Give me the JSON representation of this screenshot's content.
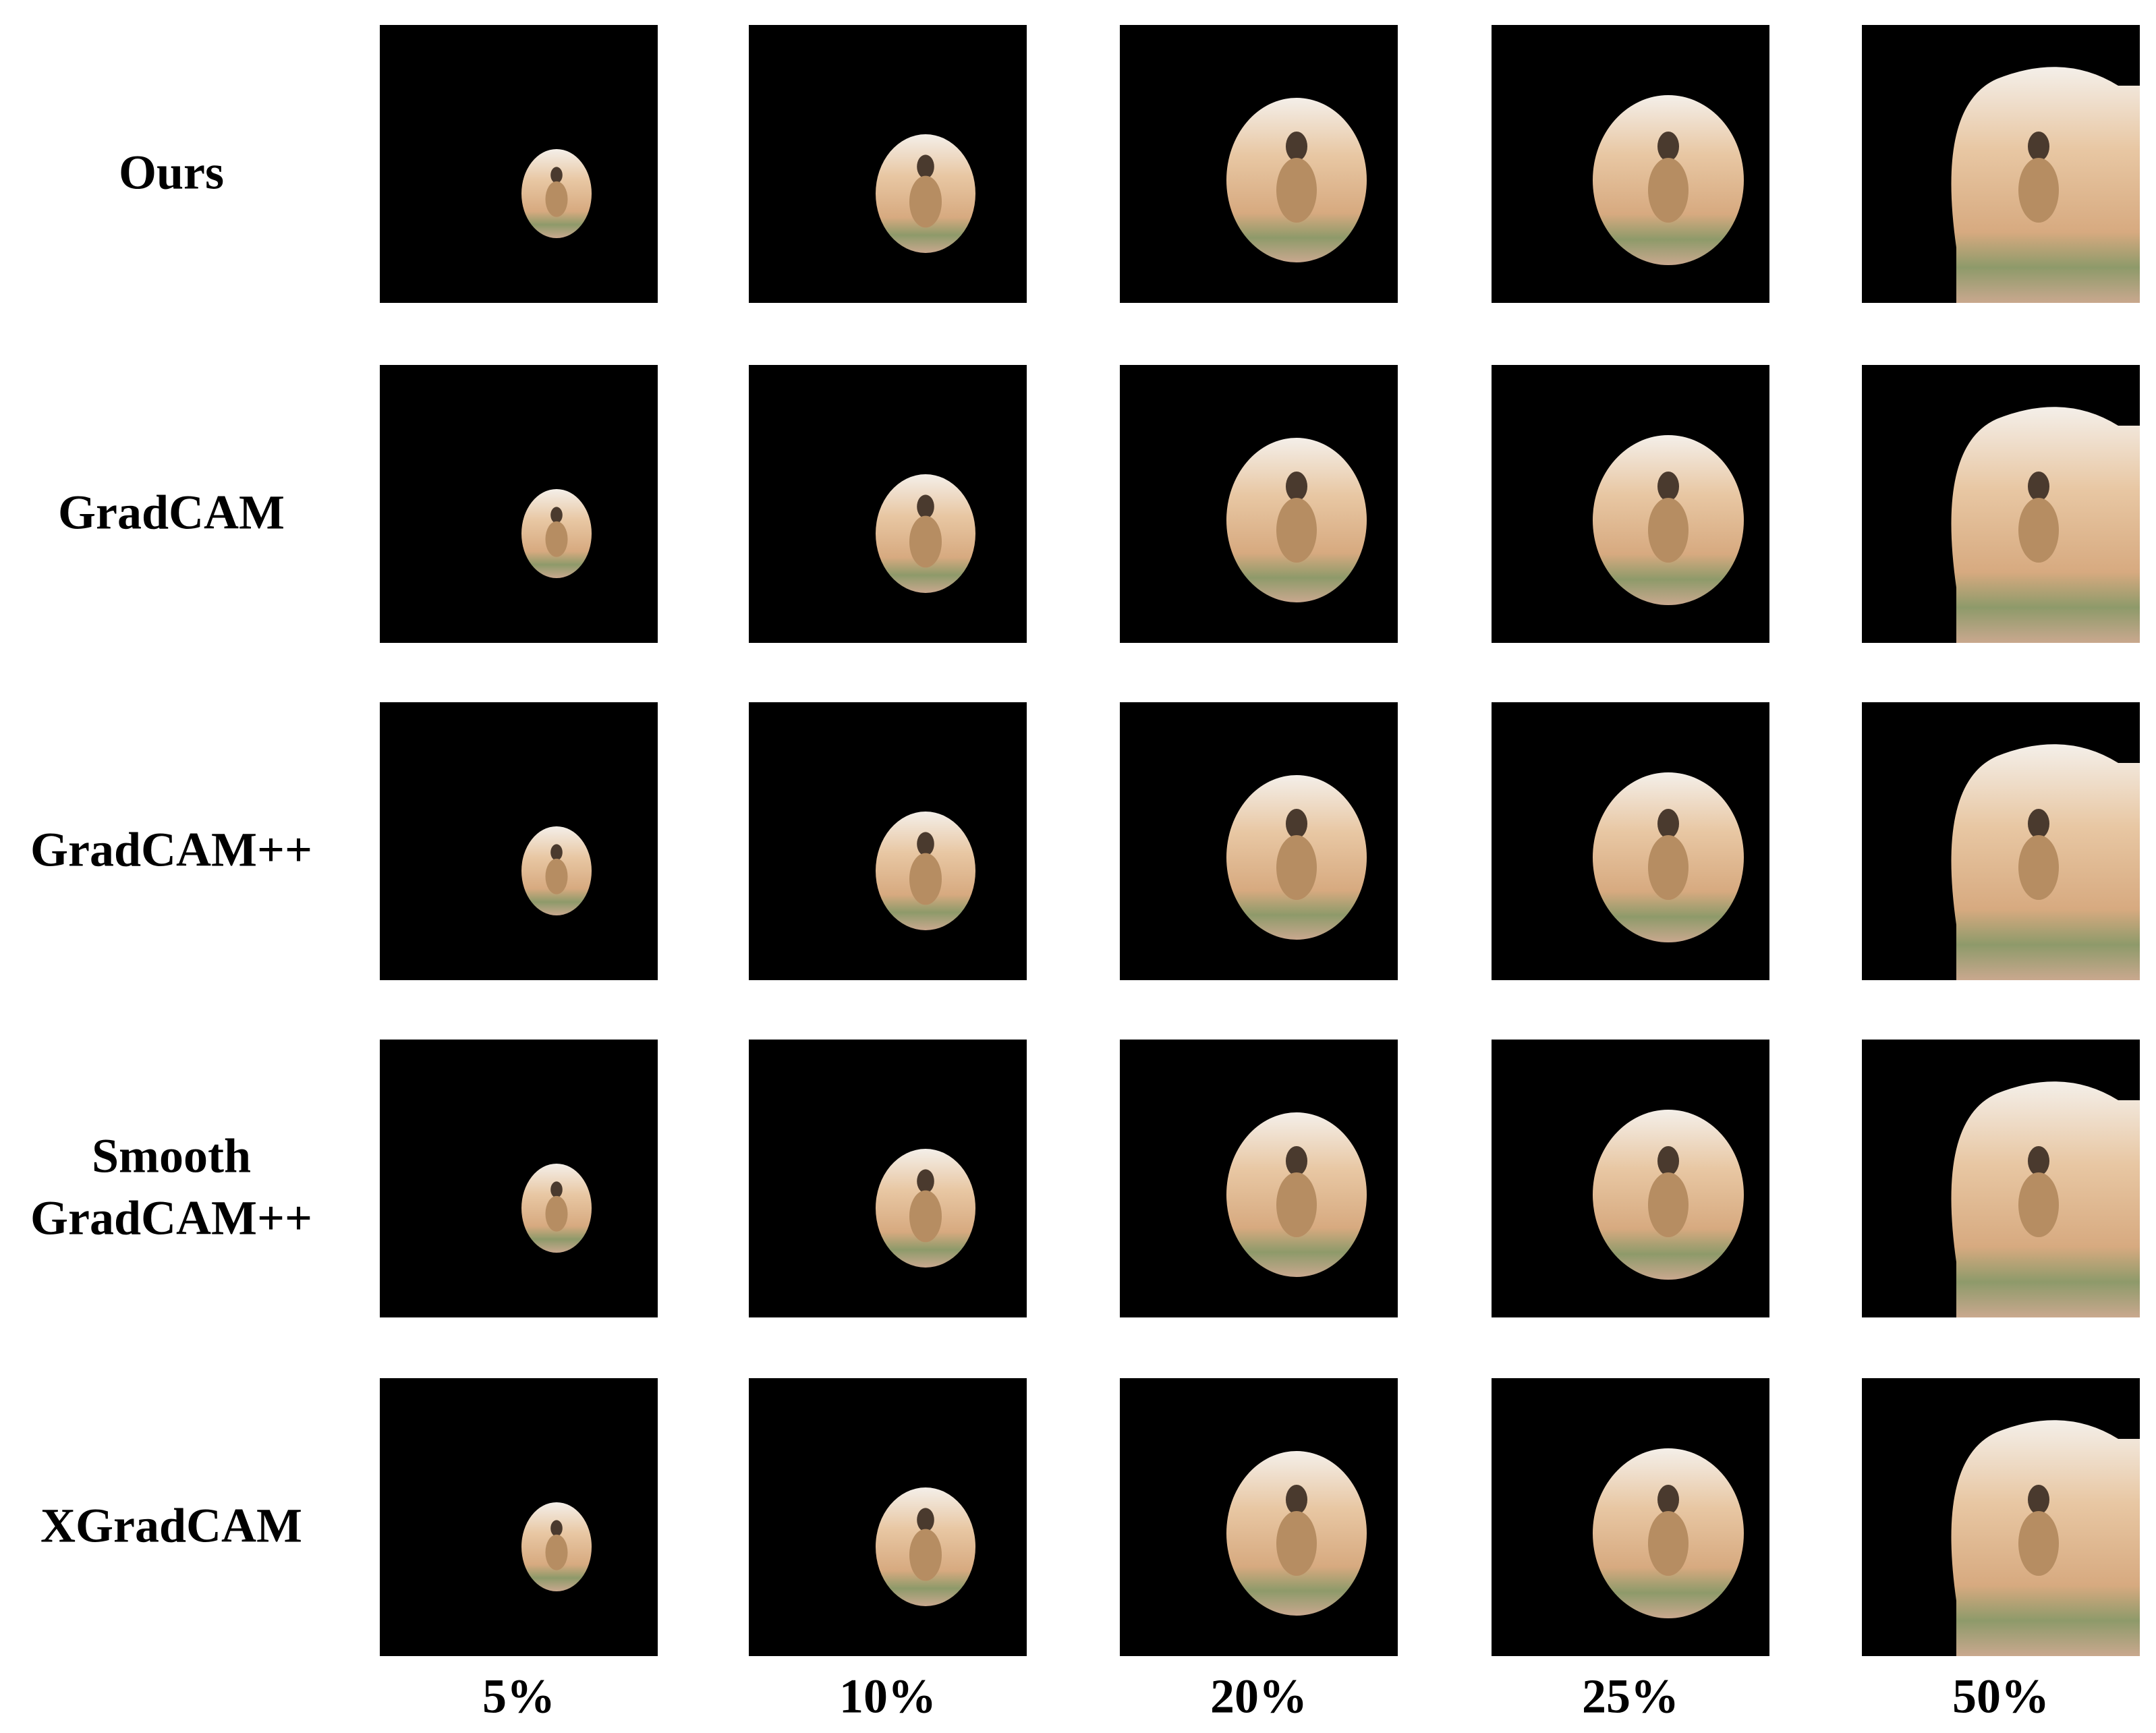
{
  "rows": [
    [
      "Ours"
    ],
    [
      "GradCAM"
    ],
    [
      "GradCAM++"
    ],
    [
      "Smooth",
      "GradCAM++"
    ],
    [
      "XGradCAM"
    ]
  ],
  "columns": [
    "5%",
    "10%",
    "20%",
    "25%",
    "50%"
  ]
}
